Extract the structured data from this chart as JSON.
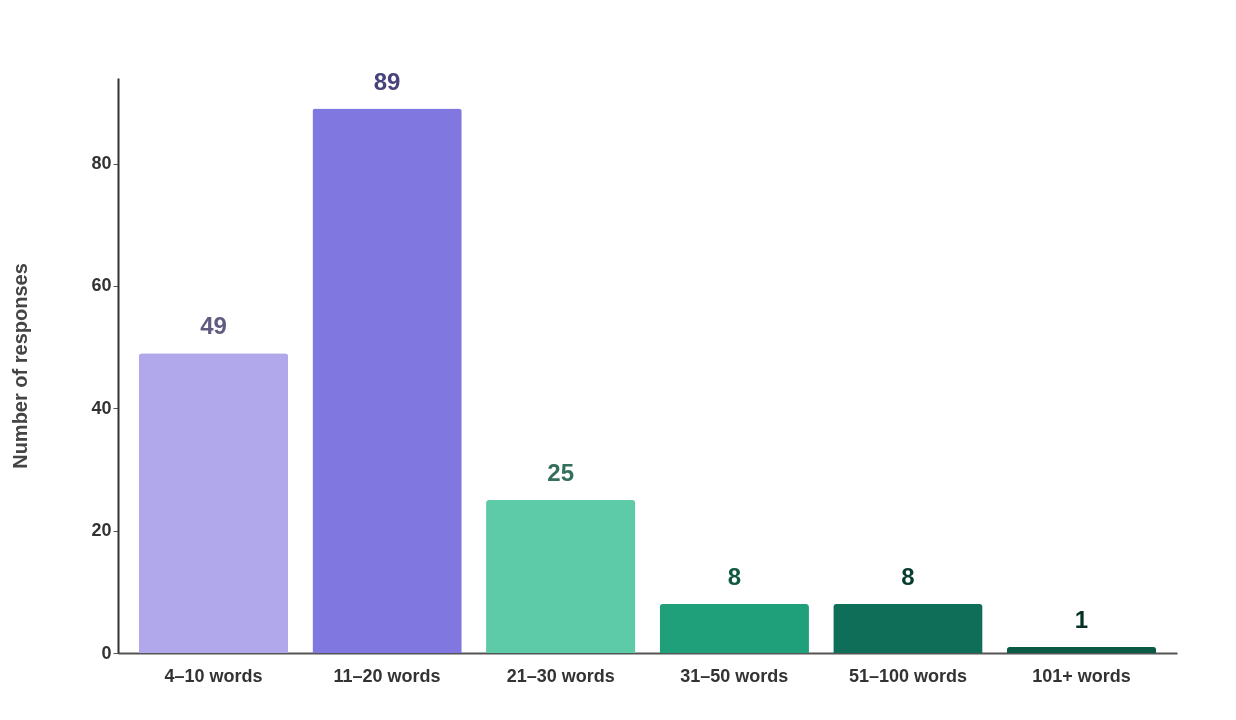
{
  "chart_data": {
    "type": "bar",
    "ylabel": "Number of responses",
    "categories": [
      "4–10 words",
      "11–20 words",
      "21–30 words",
      "31–50 words",
      "51–100 words",
      "101+ words"
    ],
    "values": [
      49,
      89,
      25,
      8,
      8,
      1
    ],
    "colors": [
      "#b0a8ea",
      "#8078e0",
      "#5ecba8",
      "#1fa07a",
      "#0e6e57",
      "#0b5a46"
    ],
    "ylim": [
      0,
      94
    ],
    "yticks": [
      0,
      20,
      40,
      60,
      80
    ],
    "grid": false,
    "data_labels": true
  }
}
